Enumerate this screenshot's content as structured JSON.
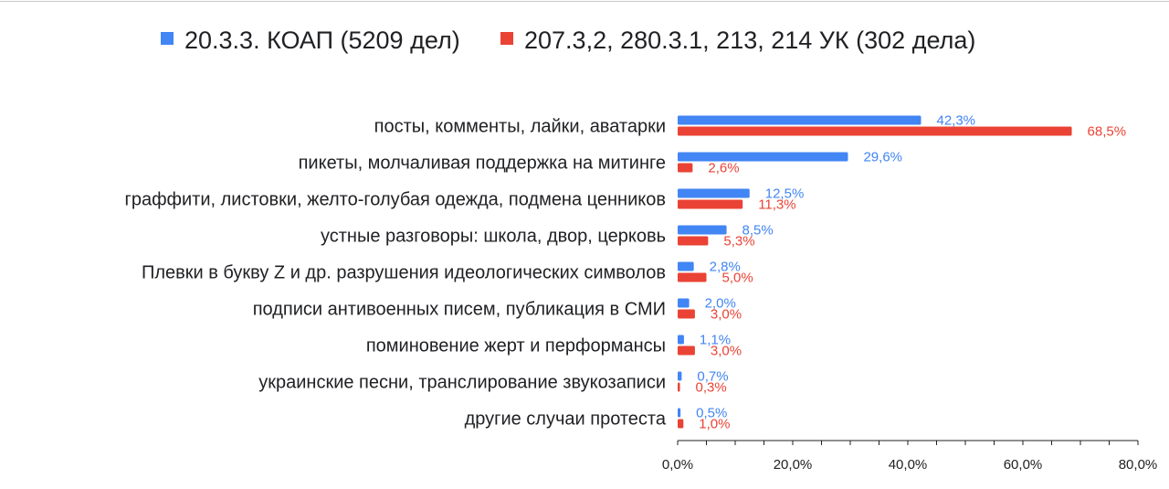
{
  "chart_data": {
    "type": "bar",
    "orientation": "horizontal",
    "legend_position": "top",
    "grid": false,
    "categories": [
      "посты, комменты, лайки, аватарки",
      "пикеты, молчаливая поддержка на митинге",
      "граффити, листовки, желто-голубая одежда, подмена ценников",
      "устные разговоры: школа, двор, церковь",
      "Плевки в букву Z и др. разрушения идеологических символов",
      "подписи антивоенных писем, публикация в СМИ",
      "поминовение жерт и перформансы",
      "украинские песни, транслирование звукозаписи",
      "другие случаи протеста"
    ],
    "series": [
      {
        "name": "20.3.3. КОАП (5209 дел)",
        "color": "#4285f4",
        "values": [
          42.3,
          29.6,
          12.5,
          8.5,
          2.8,
          2.0,
          1.1,
          0.7,
          0.5
        ],
        "labels": [
          "42,3%",
          "29,6%",
          "12,5%",
          "8,5%",
          "2,8%",
          "2,0%",
          "1,1%",
          "0,7%",
          "0,5%"
        ]
      },
      {
        "name": "207.3,2, 280.3.1, 213, 214 УК (302 дела)",
        "color": "#ea4335",
        "values": [
          68.5,
          2.6,
          11.3,
          5.3,
          5.0,
          3.0,
          3.0,
          0.3,
          1.0
        ],
        "labels": [
          "68,5%",
          "2,6%",
          "11,3%",
          "5,3%",
          "5,0%",
          "3,0%",
          "3,0%",
          "0,3%",
          "1,0%"
        ]
      }
    ],
    "xlim": [
      0,
      80
    ],
    "xticks": [
      0,
      20,
      40,
      60,
      80
    ],
    "xtick_labels": [
      "0,0%",
      "20,0%",
      "40,0%",
      "60,0%",
      "80,0%"
    ],
    "xlabel": "",
    "ylabel": "",
    "title": ""
  }
}
